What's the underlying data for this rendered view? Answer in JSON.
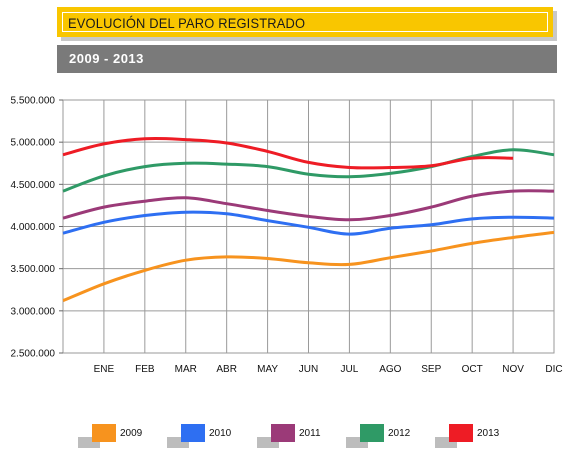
{
  "header": {
    "title": "EVOLUCIÓN DEL PARO REGISTRADO",
    "subtitle": "2009  -  2013"
  },
  "chart_data": {
    "type": "line",
    "categories": [
      "",
      "ENE",
      "FEB",
      "MAR",
      "ABR",
      "MAY",
      "JUN",
      "JUL",
      "AGO",
      "SEP",
      "OCT",
      "NOV",
      "DIC"
    ],
    "y_tick_labels": [
      "2.500.000",
      "3.000.000",
      "3.500.000",
      "4.000.000",
      "4.500.000",
      "5.000.000",
      "5.500.000"
    ],
    "ylim": [
      2500000,
      5500000
    ],
    "grid": true,
    "legend_position": "bottom",
    "series": [
      {
        "name": "2009",
        "color": "#f7931e",
        "values": [
          3120000,
          3320000,
          3480000,
          3600000,
          3640000,
          3620000,
          3570000,
          3550000,
          3630000,
          3710000,
          3800000,
          3870000,
          3930000
        ]
      },
      {
        "name": "2010",
        "color": "#2e6ff2",
        "values": [
          3920000,
          4050000,
          4130000,
          4170000,
          4150000,
          4070000,
          3990000,
          3910000,
          3980000,
          4020000,
          4090000,
          4110000,
          4100000
        ]
      },
      {
        "name": "2011",
        "color": "#9b3a78",
        "values": [
          4100000,
          4230000,
          4300000,
          4340000,
          4270000,
          4190000,
          4120000,
          4080000,
          4130000,
          4230000,
          4360000,
          4420000,
          4420000
        ]
      },
      {
        "name": "2012",
        "color": "#2f9a66",
        "values": [
          4420000,
          4600000,
          4710000,
          4750000,
          4740000,
          4710000,
          4620000,
          4590000,
          4630000,
          4710000,
          4830000,
          4910000,
          4850000
        ]
      },
      {
        "name": "2013",
        "color": "#ee1c25",
        "values": [
          4850000,
          4980000,
          5040000,
          5030000,
          4990000,
          4890000,
          4760000,
          4700000,
          4700000,
          4720000,
          4810000,
          4810000,
          null
        ]
      }
    ]
  }
}
